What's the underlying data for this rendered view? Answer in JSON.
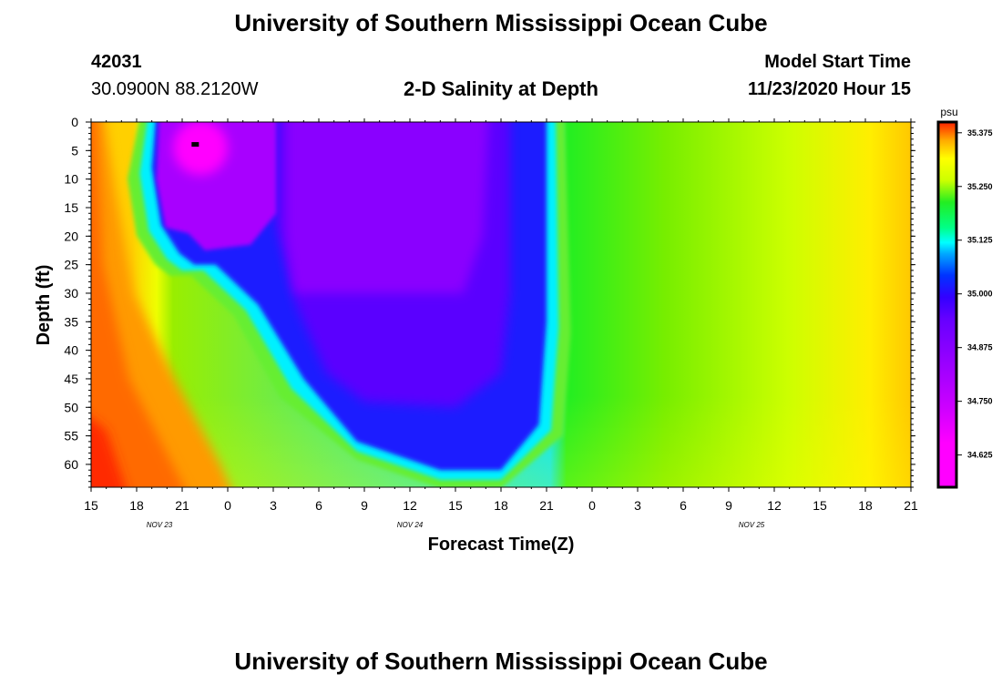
{
  "header": {
    "title": "University of Southern Mississippi Ocean Cube",
    "station_id": "42031",
    "station_coords": "30.0900N 88.2120W",
    "plot_title": "2-D Salinity at Depth",
    "model_start_label": "Model Start Time",
    "model_start_value": "11/23/2020 Hour 15"
  },
  "footer": {
    "title": "University of Southern Mississippi Ocean Cube"
  },
  "colors": {
    "scale": [
      "#ff00ff",
      "#c000ff",
      "#8a00ff",
      "#3a00ff",
      "#0033ff",
      "#00e8ff",
      "#22ee22",
      "#88ee00",
      "#eeff00",
      "#ffc800",
      "#ff8a00",
      "#ff2000"
    ]
  },
  "chart_data": {
    "type": "heatmap",
    "xlabel": "Forecast Time(Z)",
    "ylabel": "Depth (ft)",
    "x_tick_labels": [
      "15",
      "18",
      "21",
      "0",
      "3",
      "6",
      "9",
      "12",
      "15",
      "18",
      "21",
      "0",
      "3",
      "6",
      "9",
      "12",
      "15",
      "18",
      "21"
    ],
    "x_hours_from_start": [
      0,
      3,
      6,
      9,
      12,
      15,
      18,
      21,
      24,
      27,
      30,
      33,
      36,
      39,
      42,
      45,
      48,
      51,
      54
    ],
    "x_range_hours": [
      0,
      54
    ],
    "date_labels": [
      {
        "label": "NOV 23",
        "hour": 4.5
      },
      {
        "label": "NOV 24",
        "hour": 21
      },
      {
        "label": "NOV 25",
        "hour": 43.5
      }
    ],
    "y_tick_labels": [
      "0",
      "5",
      "10",
      "15",
      "20",
      "25",
      "30",
      "35",
      "40",
      "45",
      "50",
      "55",
      "60"
    ],
    "y_range": [
      0,
      64
    ],
    "colorbar": {
      "unit": "psu",
      "tick_labels": [
        "35.375",
        "35.250",
        "35.125",
        "35.000",
        "34.875",
        "34.750",
        "34.625"
      ],
      "range": [
        34.55,
        35.4
      ]
    },
    "freshwater_core_boundary": [
      {
        "hour": 4.3,
        "depth": 0
      },
      {
        "hour": 4.0,
        "depth": 8
      },
      {
        "hour": 4.6,
        "depth": 18
      },
      {
        "hour": 5.8,
        "depth": 23
      },
      {
        "hour": 6.8,
        "depth": 25
      },
      {
        "hour": 8.2,
        "depth": 25
      },
      {
        "hour": 11.0,
        "depth": 32
      },
      {
        "hour": 14.0,
        "depth": 45
      },
      {
        "hour": 17.5,
        "depth": 56
      },
      {
        "hour": 23.0,
        "depth": 61
      },
      {
        "hour": 27.0,
        "depth": 61
      },
      {
        "hour": 29.5,
        "depth": 53
      },
      {
        "hour": 30.0,
        "depth": 35
      },
      {
        "hour": 30.0,
        "depth": 0
      }
    ]
  }
}
